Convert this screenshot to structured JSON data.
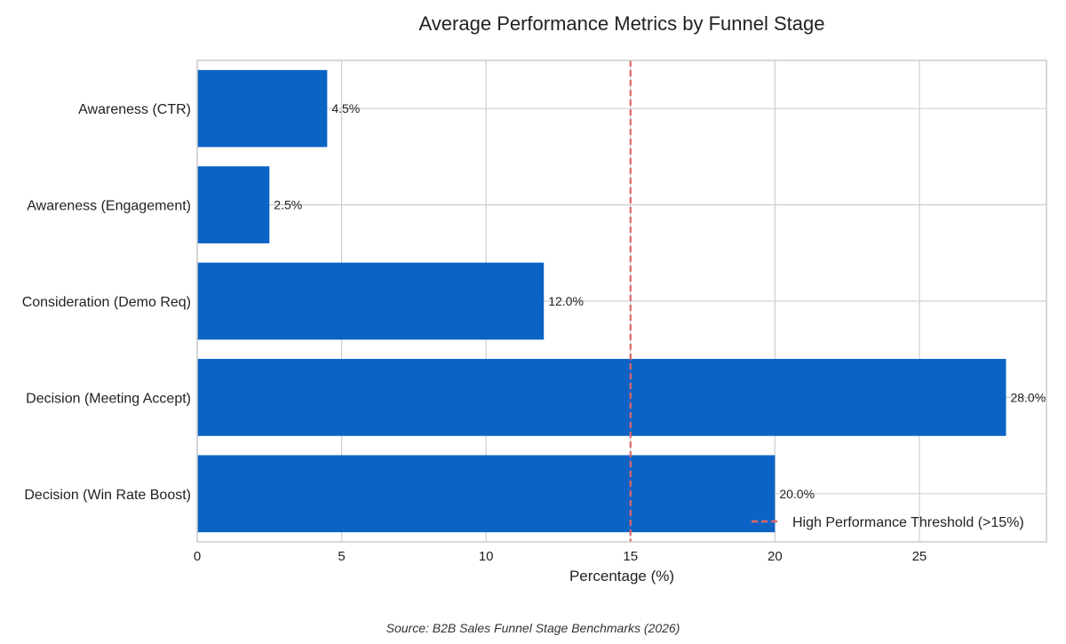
{
  "chart_data": {
    "type": "bar",
    "orientation": "horizontal",
    "title": "Average Performance Metrics by Funnel Stage",
    "categories": [
      "Awareness (CTR)",
      "Awareness (Engagement)",
      "Consideration (Demo Req)",
      "Decision (Meeting Accept)",
      "Decision (Win Rate Boost)"
    ],
    "values": [
      4.5,
      2.5,
      12.0,
      28.0,
      20.0
    ],
    "value_labels": [
      "4.5%",
      "2.5%",
      "12.0%",
      "28.0%",
      "20.0%"
    ],
    "xlabel": "Percentage (%)",
    "ylabel": "",
    "xlim": [
      0,
      29.4
    ],
    "xticks": [
      0,
      5,
      10,
      15,
      20,
      25
    ],
    "grid": true,
    "threshold": {
      "value": 15,
      "label": "High Performance Threshold (>15%)",
      "color": "#e06666",
      "style": "dashed"
    },
    "legend_position": "lower-right",
    "source": "Source: B2B Sales Funnel Stage Benchmarks (2026)",
    "colors": {
      "bar": "#0c63c6",
      "grid": "#d0d0d0",
      "axes": "#cccccc"
    }
  }
}
